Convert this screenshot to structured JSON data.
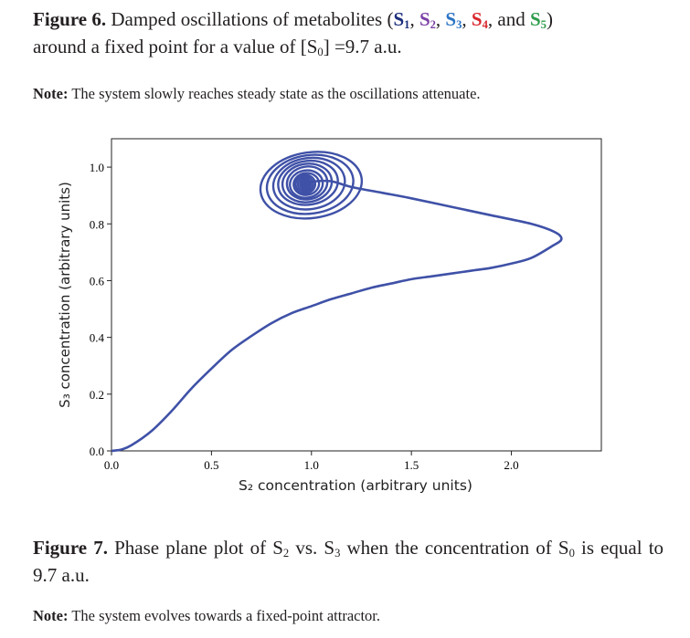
{
  "fig6": {
    "label": "Figure 6.",
    "text_a": "Damped oscillations of metabolites (",
    "s": "S",
    "sub1": "1",
    "sub2": "2",
    "sub3": "3",
    "sub4": "4",
    "sub5": "5",
    "comma": ",",
    "and": "and",
    "close": ")",
    "text_b": "around a fixed point for a value of [S",
    "sub0": "0",
    "text_c": "] =9.7 a.u."
  },
  "note6": {
    "label": "Note:",
    "text": "The system slowly reaches steady state as the oscillations attenuate."
  },
  "fig7": {
    "label": "Figure 7.",
    "text_a": "Phase plane plot of S",
    "sub_a": "2",
    "text_b": "vs. S",
    "sub_b": "3",
    "text_c": "when the concentration of S",
    "sub_c": "0",
    "text_d": "is equal to 9.7 a.u."
  },
  "note7": {
    "label": "Note:",
    "text": "The system evolves towards a fixed-point attractor."
  },
  "colors": {
    "line": "#3f51a7",
    "s1": "#1c2f7c",
    "s2": "#7b3fa6",
    "s3": "#2a73c4",
    "s4": "#d9262b",
    "s5": "#2e9c4a"
  },
  "chart_data": {
    "type": "line",
    "xlabel": "S₂ concentration (arbitrary units)",
    "ylabel": "S₃ concentration (arbitrary units)",
    "xlim": [
      0,
      2.45
    ],
    "ylim": [
      0,
      1.1
    ],
    "xticks": [
      "0.0",
      "0.5",
      "1.0",
      "1.5",
      "2.0"
    ],
    "yticks": [
      "0.0",
      "0.2",
      "0.4",
      "0.6",
      "0.8",
      "1.0"
    ],
    "grid": false,
    "series": [
      {
        "x": [
          0.0,
          0.05,
          0.1,
          0.2,
          0.3,
          0.4,
          0.5,
          0.6,
          0.7,
          0.8,
          0.9,
          1.0,
          1.1,
          1.2,
          1.3,
          1.4,
          1.5,
          1.6,
          1.7,
          1.8,
          1.9,
          2.0,
          2.1,
          2.2,
          2.25,
          2.22,
          2.1,
          1.9,
          1.7,
          1.5,
          1.35,
          1.2,
          1.1,
          1.02,
          0.95
        ],
        "y": [
          0.0,
          0.005,
          0.02,
          0.07,
          0.14,
          0.22,
          0.29,
          0.355,
          0.405,
          0.45,
          0.485,
          0.51,
          0.535,
          0.555,
          0.575,
          0.59,
          0.605,
          0.615,
          0.625,
          0.635,
          0.645,
          0.66,
          0.68,
          0.72,
          0.745,
          0.77,
          0.8,
          0.83,
          0.86,
          0.89,
          0.91,
          0.93,
          0.95,
          0.95,
          0.94
        ]
      }
    ],
    "attractor": {
      "x": 0.97,
      "y": 0.94
    }
  }
}
